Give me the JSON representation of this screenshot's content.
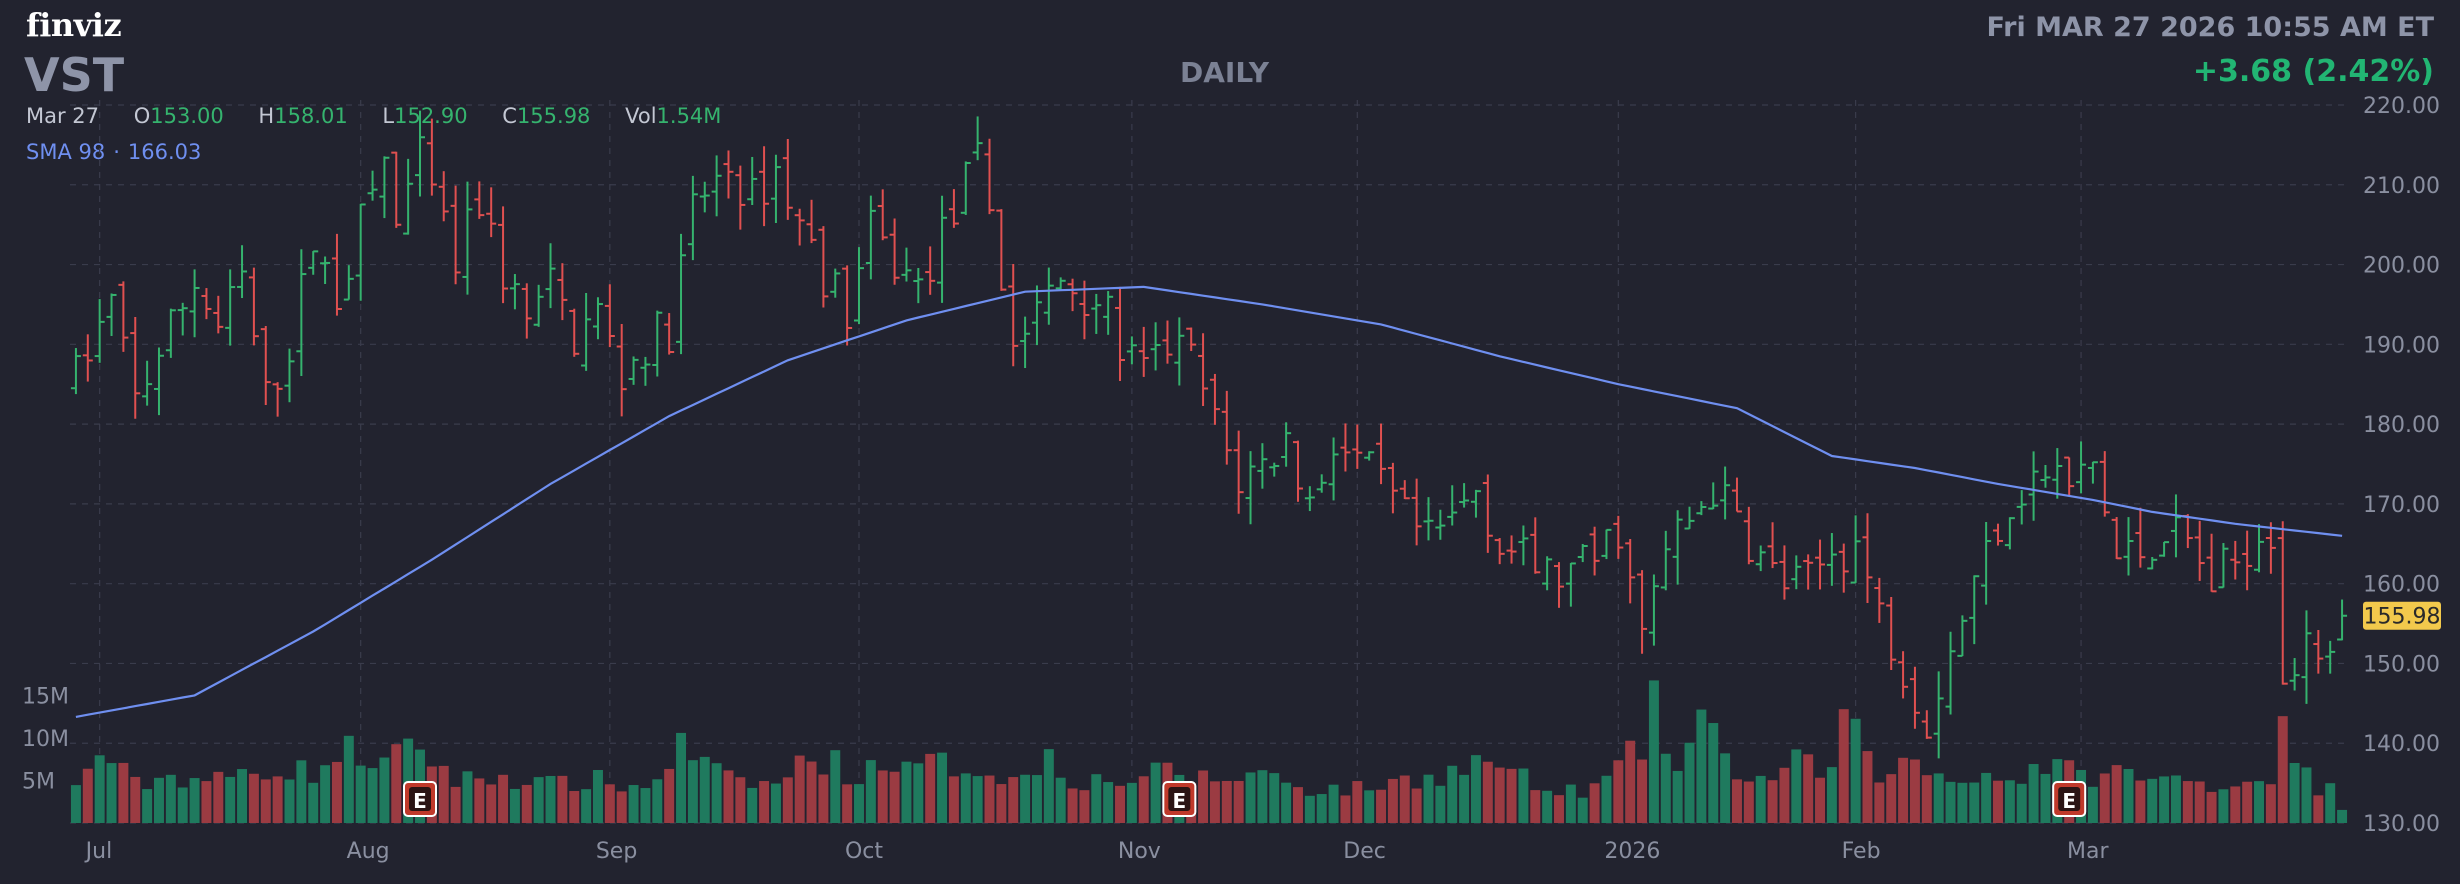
{
  "header": {
    "logo": "finviz",
    "ticker": "VST",
    "timeframe": "DAILY",
    "datetime": "Fri MAR 27 2026 10:55 AM ET",
    "change": "+3.68 (2.42%)"
  },
  "ohlc": {
    "date": "Mar 27",
    "open_label": "O",
    "open": "153.00",
    "high_label": "H",
    "high": "158.01",
    "low_label": "L",
    "low": "152.90",
    "close_label": "C",
    "close": "155.98",
    "vol_label": "Vol",
    "vol": "1.54M"
  },
  "indicator": {
    "label": "SMA 98",
    "value": "166.03",
    "color": "#6f8ff0"
  },
  "colors": {
    "background": "#22232f",
    "up": "#35b36e",
    "down": "#e05050",
    "vol_up": "#1f7a5e",
    "vol_down": "#9b3b42",
    "grid": "#3a3c4c",
    "last_price_bg": "#f2c94c"
  },
  "chart_data": {
    "type": "ohlc",
    "ylim": [
      130,
      220
    ],
    "y_ticks": [
      "220.00",
      "210.00",
      "200.00",
      "190.00",
      "180.00",
      "170.00",
      "160.00",
      "150.00",
      "140.00",
      "130.00"
    ],
    "last_price_label": "155.98",
    "x_labels": [
      {
        "label": "Jul",
        "index": 2
      },
      {
        "label": "Aug",
        "index": 24
      },
      {
        "label": "Sep",
        "index": 45
      },
      {
        "label": "Oct",
        "index": 66
      },
      {
        "label": "Nov",
        "index": 89
      },
      {
        "label": "Dec",
        "index": 108
      },
      {
        "label": "2026",
        "index": 130
      },
      {
        "label": "Feb",
        "index": 150
      },
      {
        "label": "Mar",
        "index": 169
      }
    ],
    "volume_labels": [
      "15M",
      "10M",
      "5M"
    ],
    "volume_ylim": [
      0,
      16
    ],
    "earnings_markers": [
      {
        "label": "E",
        "index": 29
      },
      {
        "label": "E",
        "index": 93
      },
      {
        "label": "E",
        "index": 168
      }
    ],
    "price_anchors": [
      [
        0,
        186
      ],
      [
        3,
        195
      ],
      [
        5,
        183
      ],
      [
        8,
        192
      ],
      [
        10,
        198
      ],
      [
        12,
        192
      ],
      [
        14,
        198
      ],
      [
        16,
        183
      ],
      [
        18,
        190
      ],
      [
        20,
        203
      ],
      [
        22,
        196
      ],
      [
        24,
        205
      ],
      [
        26,
        213
      ],
      [
        27,
        205
      ],
      [
        29,
        213
      ],
      [
        32,
        200
      ],
      [
        34,
        208
      ],
      [
        36,
        199
      ],
      [
        38,
        193
      ],
      [
        40,
        197
      ],
      [
        42,
        191
      ],
      [
        44,
        194
      ],
      [
        46,
        186
      ],
      [
        48,
        190
      ],
      [
        50,
        192
      ],
      [
        52,
        207
      ],
      [
        55,
        212
      ],
      [
        57,
        208
      ],
      [
        59,
        212
      ],
      [
        61,
        205
      ],
      [
        63,
        199
      ],
      [
        65,
        194
      ],
      [
        67,
        204
      ],
      [
        69,
        200
      ],
      [
        71,
        197
      ],
      [
        74,
        207
      ],
      [
        76,
        213
      ],
      [
        77,
        207
      ],
      [
        79,
        190
      ],
      [
        81,
        194
      ],
      [
        83,
        198
      ],
      [
        86,
        196
      ],
      [
        88,
        190
      ],
      [
        90,
        186
      ],
      [
        92,
        190
      ],
      [
        94,
        188
      ],
      [
        96,
        180
      ],
      [
        98,
        173
      ],
      [
        100,
        175
      ],
      [
        102,
        178
      ],
      [
        104,
        170
      ],
      [
        106,
        178
      ],
      [
        108,
        175
      ],
      [
        110,
        172
      ],
      [
        112,
        168
      ],
      [
        114,
        165
      ],
      [
        116,
        168
      ],
      [
        118,
        172
      ],
      [
        120,
        165
      ],
      [
        122,
        163
      ],
      [
        124,
        161
      ],
      [
        126,
        161
      ],
      [
        128,
        163
      ],
      [
        130,
        167
      ],
      [
        132,
        153
      ],
      [
        134,
        164
      ],
      [
        136,
        168
      ],
      [
        138,
        172
      ],
      [
        140,
        168
      ],
      [
        142,
        163
      ],
      [
        144,
        160
      ],
      [
        146,
        160
      ],
      [
        148,
        164
      ],
      [
        150,
        165
      ],
      [
        152,
        156
      ],
      [
        154,
        150
      ],
      [
        156,
        143
      ],
      [
        158,
        152
      ],
      [
        160,
        160
      ],
      [
        162,
        168
      ],
      [
        164,
        172
      ],
      [
        166,
        174
      ],
      [
        168,
        172
      ],
      [
        170,
        175
      ],
      [
        172,
        163
      ],
      [
        174,
        164
      ],
      [
        176,
        167
      ],
      [
        178,
        165
      ],
      [
        180,
        160
      ],
      [
        182,
        163
      ],
      [
        184,
        167
      ],
      [
        185,
        167
      ],
      [
        186,
        149
      ],
      [
        188,
        151
      ],
      [
        189,
        152
      ],
      [
        190,
        153
      ],
      [
        191,
        156
      ]
    ],
    "sma_anchors": [
      [
        0,
        143.3
      ],
      [
        10,
        146
      ],
      [
        20,
        154
      ],
      [
        30,
        163
      ],
      [
        40,
        172.5
      ],
      [
        50,
        181
      ],
      [
        60,
        188
      ],
      [
        70,
        193
      ],
      [
        80,
        196.6
      ],
      [
        90,
        197.2
      ],
      [
        100,
        195
      ],
      [
        110,
        192.5
      ],
      [
        120,
        188.5
      ],
      [
        130,
        185
      ],
      [
        140,
        182
      ],
      [
        148,
        176
      ],
      [
        155,
        174.5
      ],
      [
        162,
        172.5
      ],
      [
        170,
        170.5
      ],
      [
        175,
        169
      ],
      [
        182,
        167.5
      ],
      [
        191,
        166
      ]
    ],
    "volume_anchors": [
      [
        0,
        4
      ],
      [
        2,
        8.5
      ],
      [
        5,
        4.5
      ],
      [
        8,
        5.5
      ],
      [
        12,
        5
      ],
      [
        16,
        6.5
      ],
      [
        20,
        6
      ],
      [
        23,
        8.5
      ],
      [
        26,
        7
      ],
      [
        29,
        9
      ],
      [
        32,
        5
      ],
      [
        36,
        5.5
      ],
      [
        40,
        4.5
      ],
      [
        44,
        5
      ],
      [
        48,
        4
      ],
      [
        51,
        9
      ],
      [
        55,
        5
      ],
      [
        59,
        4.5
      ],
      [
        62,
        8
      ],
      [
        64,
        7
      ],
      [
        66,
        5
      ],
      [
        68,
        8
      ],
      [
        70,
        6
      ],
      [
        72,
        7
      ],
      [
        76,
        6.5
      ],
      [
        80,
        5
      ],
      [
        82,
        8.5
      ],
      [
        84,
        5
      ],
      [
        88,
        5
      ],
      [
        92,
        6
      ],
      [
        96,
        5
      ],
      [
        100,
        6
      ],
      [
        104,
        4
      ],
      [
        108,
        4
      ],
      [
        112,
        5
      ],
      [
        116,
        6
      ],
      [
        119,
        7.5
      ],
      [
        121,
        6
      ],
      [
        124,
        3.5
      ],
      [
        128,
        4
      ],
      [
        132,
        9
      ],
      [
        133,
        13.5
      ],
      [
        135,
        6
      ],
      [
        137,
        12.5
      ],
      [
        139,
        7
      ],
      [
        142,
        5
      ],
      [
        145,
        7
      ],
      [
        148,
        6
      ],
      [
        149,
        13
      ],
      [
        151,
        7
      ],
      [
        152,
        6
      ],
      [
        155,
        7
      ],
      [
        158,
        5
      ],
      [
        160,
        6
      ],
      [
        163,
        5
      ],
      [
        166,
        7
      ],
      [
        169,
        5.5
      ],
      [
        172,
        6
      ],
      [
        175,
        5
      ],
      [
        178,
        5
      ],
      [
        182,
        4.5
      ],
      [
        185,
        6
      ],
      [
        186,
        10.5
      ],
      [
        187,
        7
      ],
      [
        189,
        4
      ],
      [
        190,
        4
      ],
      [
        191,
        1.54
      ]
    ],
    "bar_count": 192
  }
}
